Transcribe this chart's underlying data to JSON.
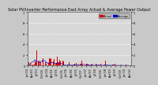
{
  "title": "Solar PV/Inverter Performance East Array Actual & Average Power Output",
  "bg_color": "#c8c8c8",
  "plot_bg_color": "#d8d8d8",
  "bar_color": "#dd0000",
  "avg_line_color": "#0000cc",
  "grid_color": "#ffffff",
  "ylim": [
    0,
    1.0
  ],
  "n_points": 400,
  "legend_actual_color": "#dd0000",
  "legend_avg_color": "#0000cc",
  "title_fontsize": 3.5,
  "tick_fontsize": 2.5
}
